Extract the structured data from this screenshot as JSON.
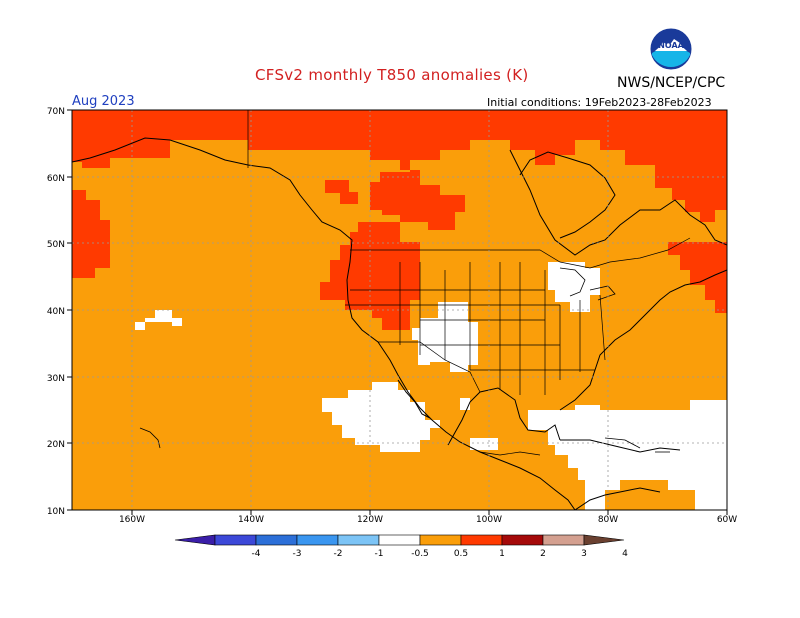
{
  "header": {
    "title": "CFSv2 monthly T850 anomalies (K)",
    "agency": "NWS/NCEP/CPC",
    "logo_text": "NOAA",
    "month": "Aug 2023",
    "initial_conditions": "Initial conditions: 19Feb2023-28Feb2023"
  },
  "axes": {
    "lat_labels": [
      "70N",
      "60N",
      "50N",
      "40N",
      "30N",
      "20N",
      "10N"
    ],
    "lon_labels": [
      "160W",
      "140W",
      "120W",
      "100W",
      "80W",
      "60W"
    ]
  },
  "colorbar": {
    "labels": [
      "-4",
      "-3",
      "-2",
      "-1",
      "-0.5",
      "0.5",
      "1",
      "2",
      "3",
      "4"
    ],
    "colors": [
      "#3a1ea8",
      "#3c48d8",
      "#2c6fd8",
      "#3a96f0",
      "#7cc4f6",
      "#ffffff",
      "#fa9e0a",
      "#ff3a00",
      "#a50a0a",
      "#d4a090",
      "#6a4030"
    ]
  },
  "map_colors": {
    "warm_0_5_to_1": "#fa9e0a",
    "warm_1_to_2": "#ff3a00",
    "neutral": "#ffffff"
  }
}
